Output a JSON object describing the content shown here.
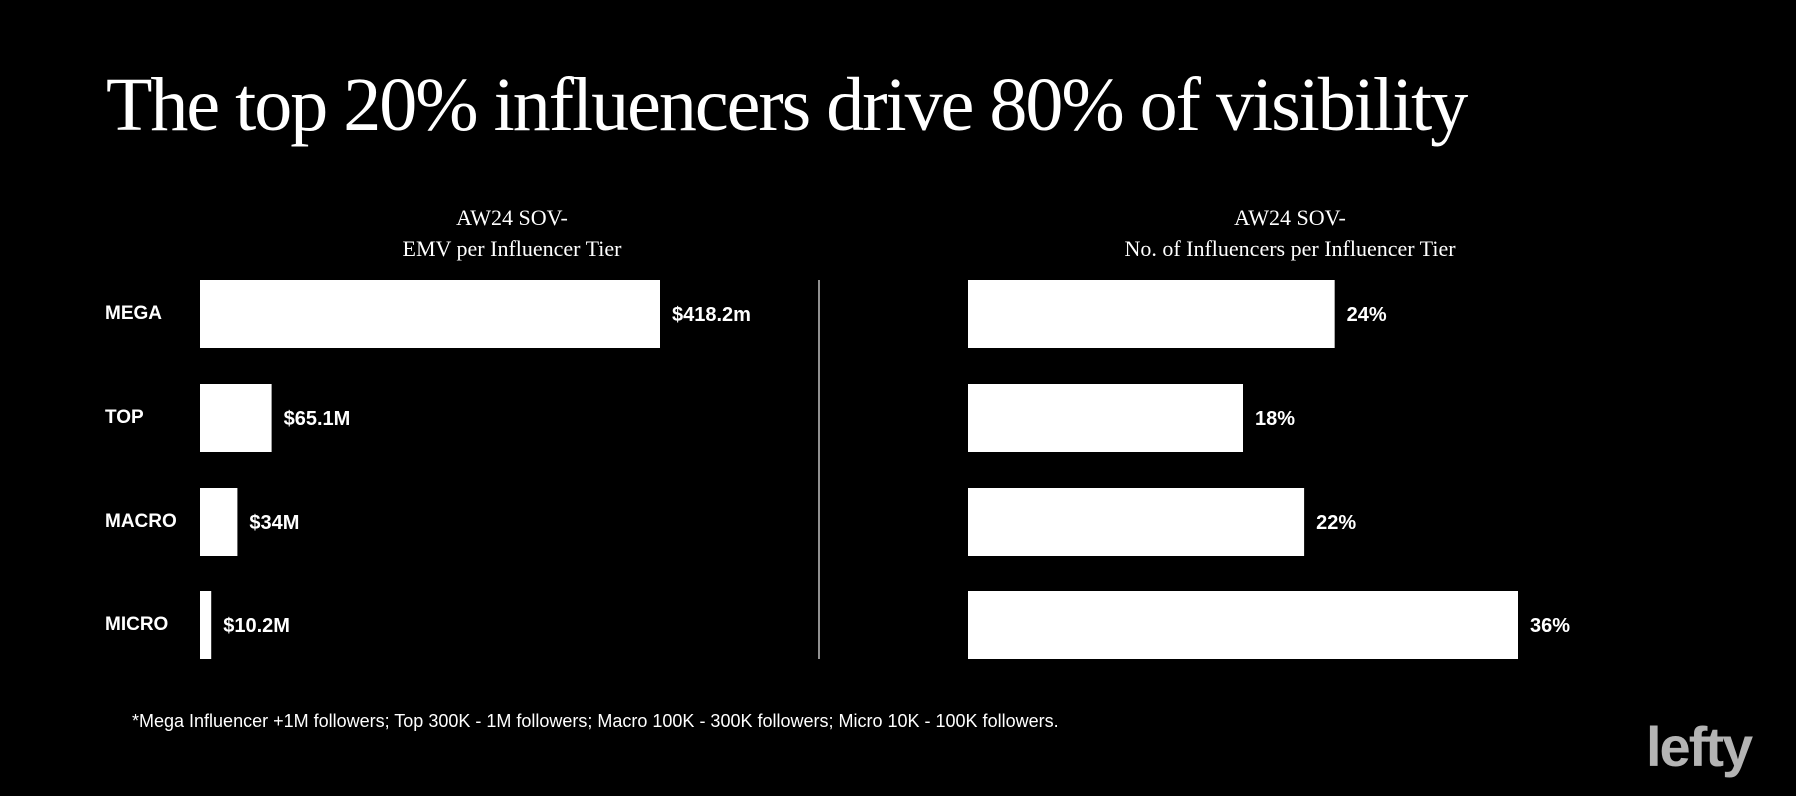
{
  "title": "The top 20% influencers drive 80% of visibility",
  "footnote": "*Mega Influencer +1M followers; Top 300K - 1M followers; Macro 100K - 300K followers; Micro 10K - 100K followers.",
  "logo": "lefty",
  "colors": {
    "background": "#000000",
    "bar": "#ffffff",
    "text": "#ffffff",
    "divider": "#bfbfbf",
    "logo": "#b4b4b4"
  },
  "chart_data": [
    {
      "type": "bar",
      "orientation": "horizontal",
      "title_lines": [
        "AW24 SOV-",
        "EMV per Influencer Tier"
      ],
      "categories": [
        "MEGA",
        "TOP",
        "MACRO",
        "MICRO"
      ],
      "values": [
        418.2,
        65.1,
        34,
        10.2
      ],
      "unit": "$M",
      "data_labels": [
        "$418.2m",
        "$65.1M",
        "$34M",
        "$10.2M"
      ],
      "xlim": [
        0,
        418.2
      ],
      "grid": false,
      "legend": "none"
    },
    {
      "type": "bar",
      "orientation": "horizontal",
      "title_lines": [
        "AW24 SOV-",
        "No. of Influencers per Influencer Tier"
      ],
      "categories": [
        "MEGA",
        "TOP",
        "MACRO",
        "MICRO"
      ],
      "values": [
        24,
        18,
        22,
        36
      ],
      "unit": "%",
      "data_labels": [
        "24%",
        "18%",
        "22%",
        "36%"
      ],
      "xlim": [
        0,
        36
      ],
      "grid": false,
      "legend": "none"
    }
  ]
}
